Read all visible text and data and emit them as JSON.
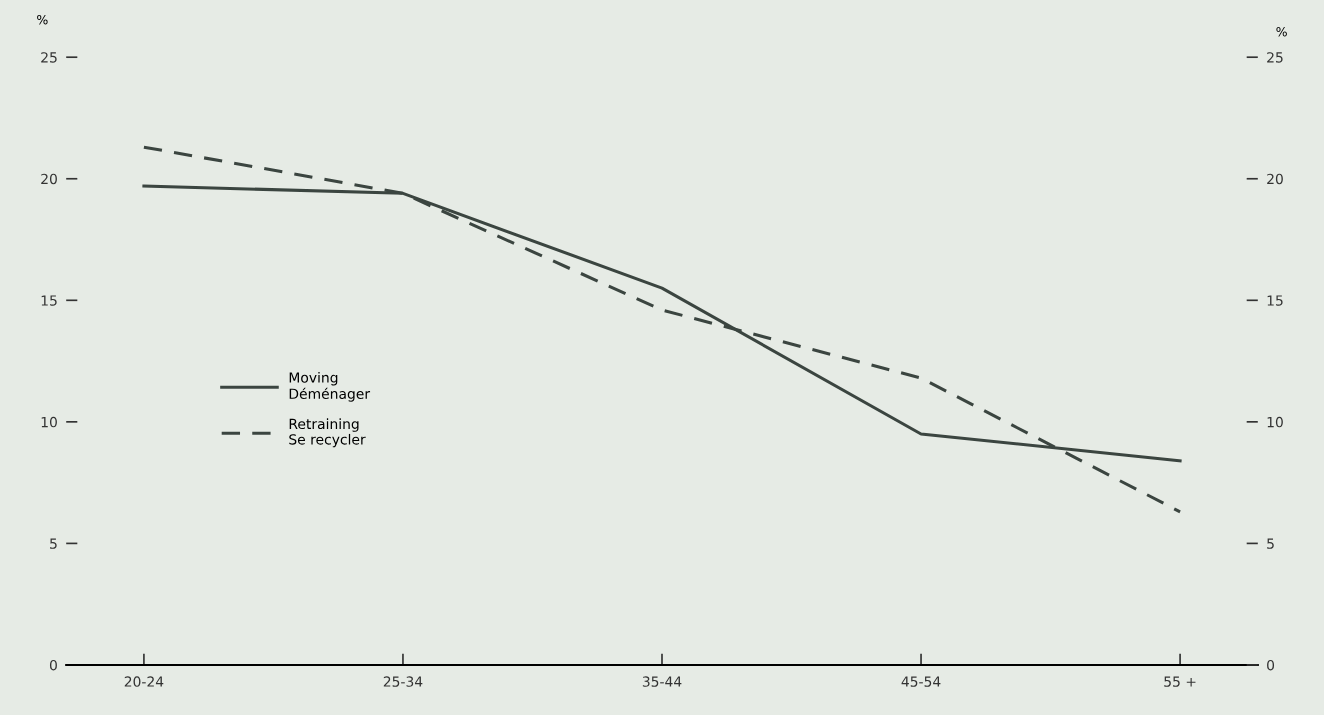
{
  "chart_data": {
    "type": "line",
    "ylabel": "%",
    "y2label": "%",
    "categories": [
      "20-24",
      "25-34",
      "35-44",
      "45-54",
      "55 +"
    ],
    "series": [
      {
        "name": "Moving\nDéménager",
        "color": "#3b4540",
        "line_style": "solid",
        "values": [
          19.7,
          19.4,
          15.5,
          9.5,
          8.4
        ]
      },
      {
        "name": "Retraining\nSe recycler",
        "color": "#3b4540",
        "line_style": "dashed",
        "values": [
          21.3,
          19.4,
          14.6,
          11.8,
          6.3
        ]
      }
    ],
    "ylim": [
      0,
      25
    ],
    "yticks": [
      0,
      5,
      10,
      15,
      20,
      25
    ],
    "y2lim": [
      0,
      25
    ],
    "y2ticks": [
      0,
      5,
      10,
      15,
      20,
      25
    ],
    "grid": false,
    "legend": "left",
    "marker": "none"
  }
}
